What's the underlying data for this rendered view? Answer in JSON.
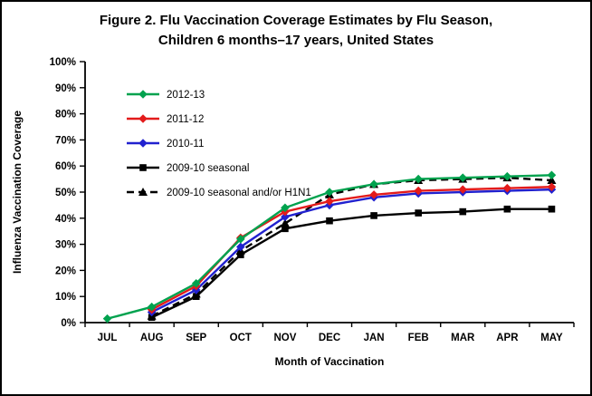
{
  "figure": {
    "title_line1": "Figure 2. Flu Vaccination Coverage Estimates by Flu Season,",
    "title_line2": "Children 6 months–17 years, United States"
  },
  "chart_data": {
    "type": "line",
    "title": "Figure 2. Flu Vaccination Coverage Estimates by Flu Season, Children 6 months–17 years, United States",
    "xlabel": "Month of Vaccination",
    "ylabel": "Influenza Vaccination Coverage",
    "ylim": [
      0,
      100
    ],
    "ytick_step": 10,
    "ytick_format": "percent",
    "grid": false,
    "legend_position": "inside-top-left",
    "categories": [
      "JUL",
      "AUG",
      "SEP",
      "OCT",
      "NOV",
      "DEC",
      "JAN",
      "FEB",
      "MAR",
      "APR",
      "MAY"
    ],
    "series": [
      {
        "name": "2012-13",
        "color": "#00A24E",
        "marker": "diamond",
        "dash": "solid",
        "values": [
          1.5,
          6,
          15,
          32,
          44,
          50,
          53,
          55,
          55.5,
          56,
          56.5
        ]
      },
      {
        "name": "2011-12",
        "color": "#E31B1B",
        "marker": "diamond",
        "dash": "solid",
        "values": [
          null,
          5,
          14,
          32.5,
          42.5,
          46.5,
          49,
          50.5,
          51,
          51.5,
          52
        ]
      },
      {
        "name": "2010-11",
        "color": "#2121CF",
        "marker": "diamond",
        "dash": "solid",
        "values": [
          null,
          4,
          12.5,
          29,
          40.5,
          45,
          48,
          49.5,
          50,
          50.5,
          51
        ]
      },
      {
        "name": "2009-10 seasonal",
        "color": "#000000",
        "marker": "square",
        "dash": "solid",
        "values": [
          null,
          2,
          10,
          26,
          36,
          39,
          41,
          42,
          42.5,
          43.5,
          43.5
        ]
      },
      {
        "name": "2009-10 seasonal and/or H1N1",
        "color": "#000000",
        "marker": "triangle",
        "dash": "dashed",
        "values": [
          null,
          2.5,
          11,
          27.5,
          38,
          49,
          53,
          54.5,
          55,
          55.5,
          54.5
        ]
      }
    ]
  }
}
